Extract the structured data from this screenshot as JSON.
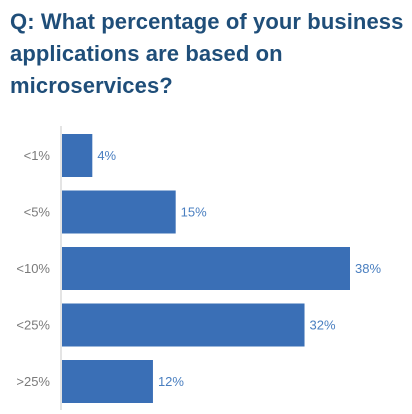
{
  "chart_data": {
    "type": "bar",
    "orientation": "horizontal",
    "title": "Q: What percentage of your business applications are based on microservices?",
    "categories": [
      "<1%",
      "<5%",
      "<10%",
      "<25%",
      ">25%"
    ],
    "values": [
      4,
      15,
      38,
      32,
      12
    ],
    "value_labels": [
      "4%",
      "15%",
      "38%",
      "32%",
      "12%"
    ],
    "xlim": [
      0,
      40
    ],
    "grid": false,
    "bar_color": "#3a6fb6",
    "label_color": "#4a7fc0",
    "title_color": "#1f4e79"
  }
}
